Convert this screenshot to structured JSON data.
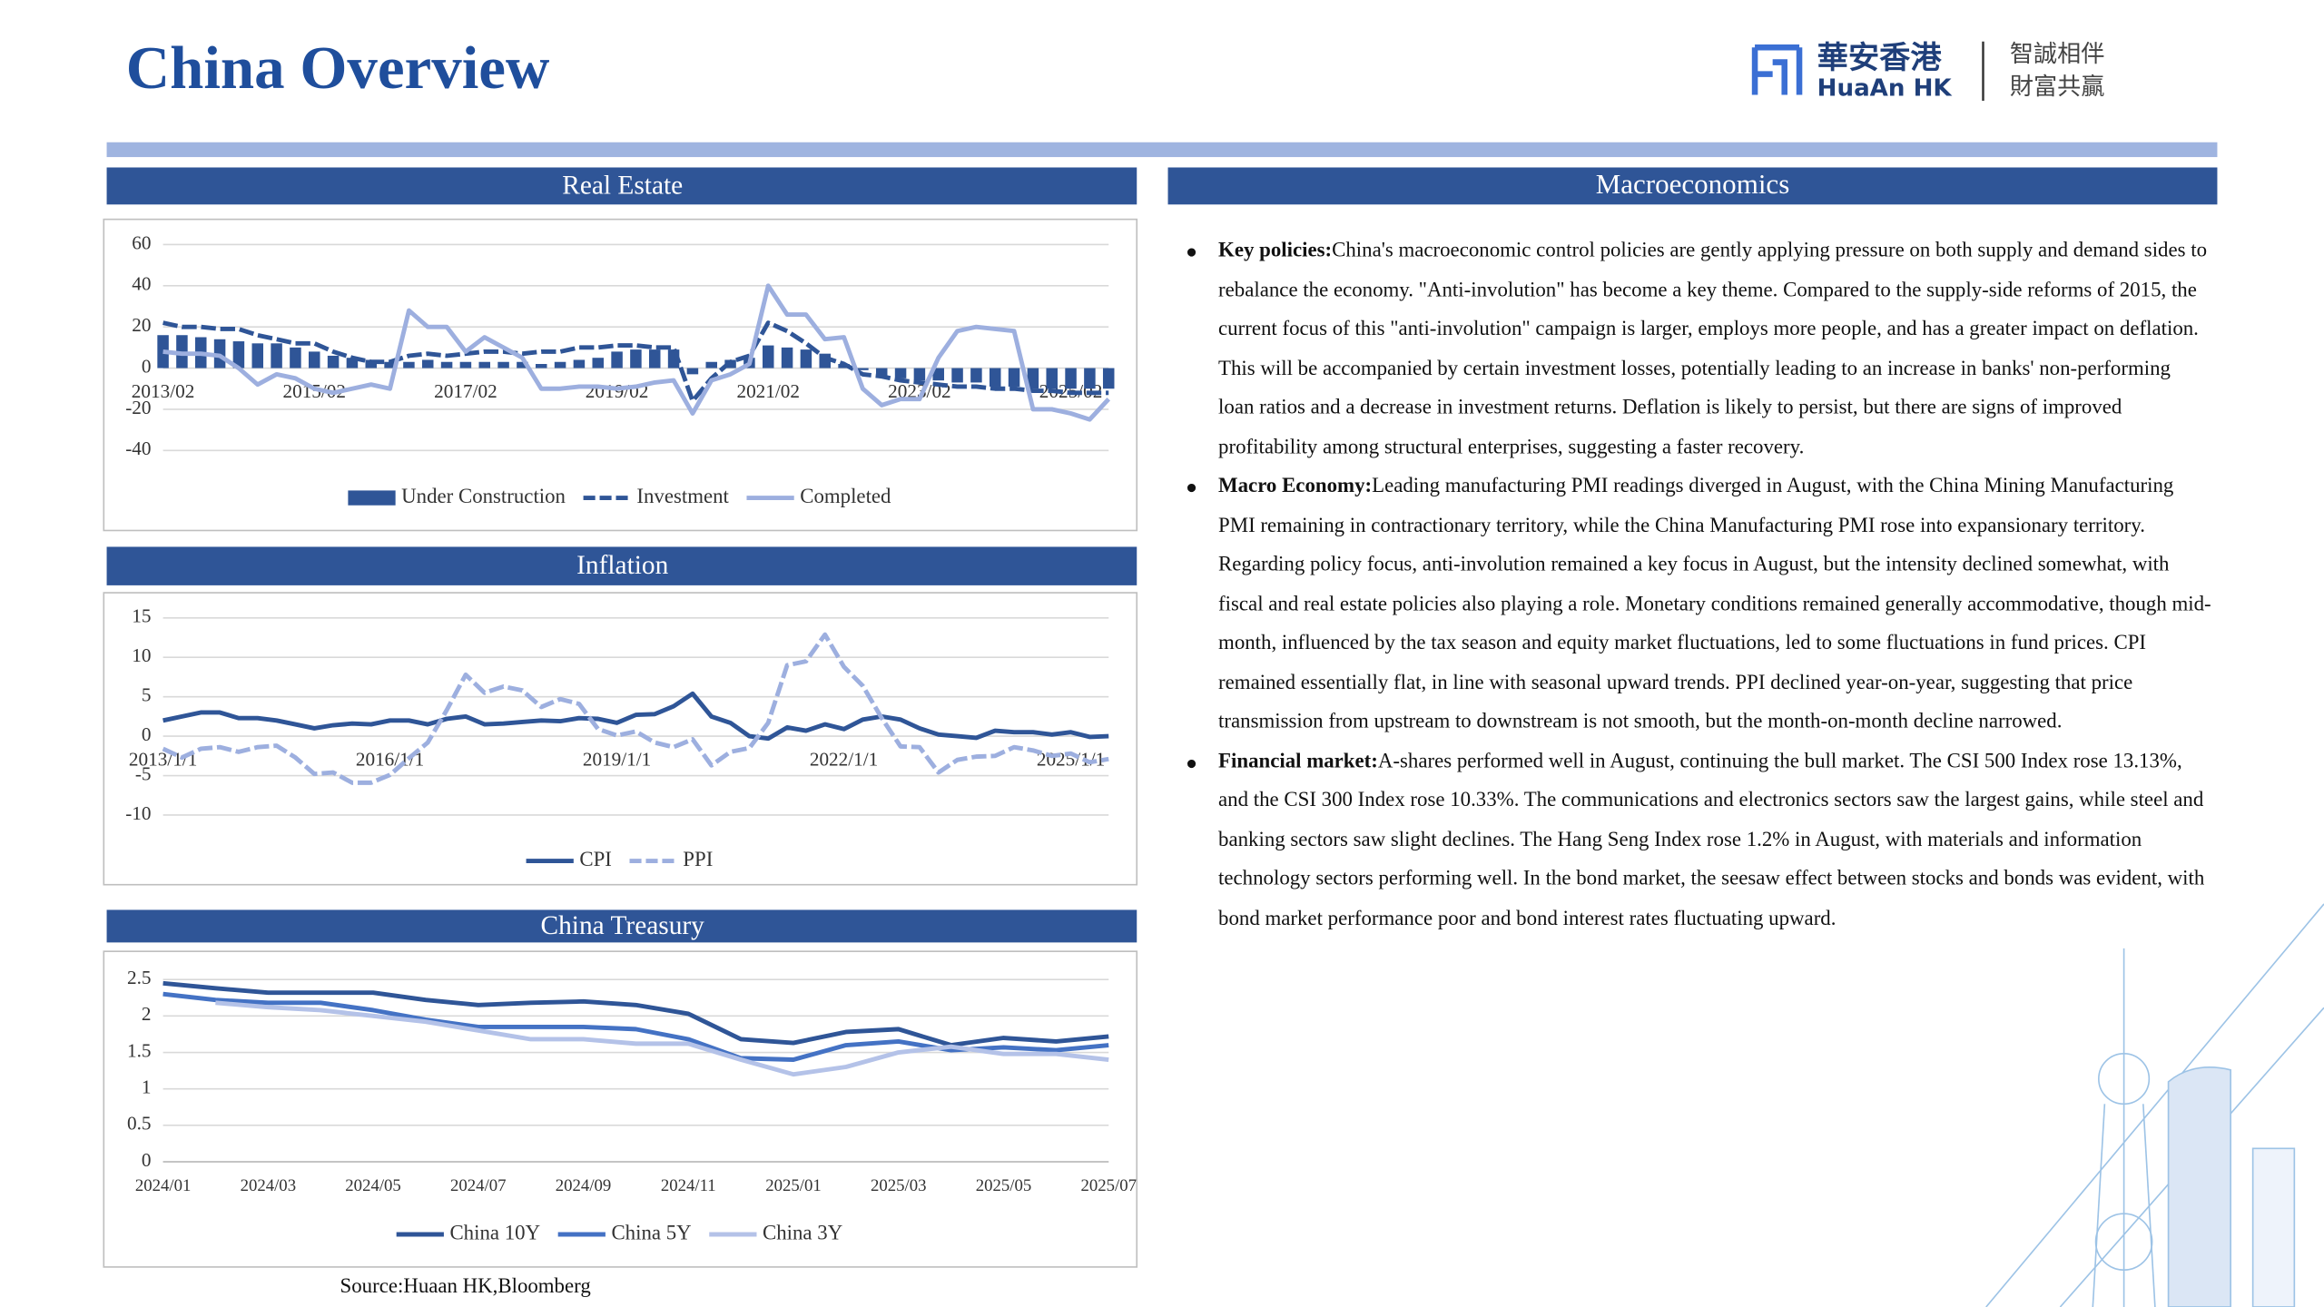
{
  "header": {
    "title": "China Overview",
    "logo_cn": "華安香港",
    "logo_en": "HuaAn HK",
    "slogan_1": "智誠相伴",
    "slogan_2": "財富共贏"
  },
  "chart_data": [
    {
      "type": "bar_line",
      "title": "Real Estate",
      "categories": [
        "2013/02",
        null,
        null,
        null,
        null,
        null,
        null,
        null,
        "2015/02",
        null,
        null,
        null,
        null,
        null,
        null,
        null,
        "2017/02",
        null,
        null,
        null,
        null,
        null,
        null,
        null,
        "2019/02",
        null,
        null,
        null,
        null,
        null,
        null,
        null,
        "2021/02",
        null,
        null,
        null,
        null,
        null,
        null,
        null,
        "2023/02",
        null,
        null,
        null,
        null,
        null,
        null,
        null,
        "2025/02",
        null,
        null
      ],
      "series": [
        {
          "name": "Under Construction",
          "type": "bar",
          "color": "#2f5597",
          "values": [
            16,
            16,
            15,
            14,
            13,
            12,
            12,
            10,
            8,
            6,
            5,
            4,
            3,
            3,
            4,
            3,
            3,
            3,
            3,
            3,
            2,
            3,
            4,
            5,
            8,
            9,
            9,
            9,
            -3,
            3,
            4,
            5,
            11,
            10,
            9,
            7,
            2,
            -1,
            -4,
            -5,
            -6,
            -6,
            -7,
            -7,
            -9,
            -9,
            -10,
            -10,
            -10,
            -10,
            -10
          ]
        },
        {
          "name": "Investment",
          "type": "line",
          "style": "dashed",
          "color": "#2f5597",
          "values": [
            22,
            20,
            20,
            19,
            19,
            16,
            14,
            12,
            12,
            8,
            5,
            3,
            3,
            6,
            7,
            6,
            7,
            8,
            8,
            7,
            8,
            8,
            10,
            10,
            11,
            11,
            10,
            10,
            -16,
            -5,
            3,
            6,
            22,
            18,
            12,
            5,
            2,
            -3,
            -4,
            -6,
            -7,
            -8,
            -9,
            -9,
            -10,
            -10,
            -11,
            -11,
            -12,
            -12,
            -12
          ]
        },
        {
          "name": "Completed",
          "type": "line",
          "color": "#9dafdf",
          "values": [
            8,
            7,
            7,
            6,
            0,
            -8,
            -3,
            -5,
            -10,
            -12,
            -10,
            -8,
            -10,
            28,
            20,
            20,
            8,
            15,
            10,
            5,
            -10,
            -10,
            -9,
            -9,
            -10,
            -9,
            -7,
            -6,
            -22,
            -6,
            -3,
            2,
            40,
            26,
            26,
            14,
            15,
            -10,
            -18,
            -15,
            -15,
            5,
            18,
            20,
            19,
            18,
            -20,
            -20,
            -22,
            -25,
            -15
          ]
        }
      ],
      "ylim": [
        -40,
        60
      ],
      "yticks": [
        60,
        40,
        20,
        0,
        -20,
        -40
      ],
      "grid": true
    },
    {
      "type": "line",
      "title": "Inflation",
      "categories": [
        "2013/1/1",
        null,
        null,
        null,
        null,
        null,
        null,
        null,
        null,
        null,
        null,
        null,
        "2016/1/1",
        null,
        null,
        null,
        null,
        null,
        null,
        null,
        null,
        null,
        null,
        null,
        "2019/1/1",
        null,
        null,
        null,
        null,
        null,
        null,
        null,
        null,
        null,
        null,
        null,
        "2022/1/1",
        null,
        null,
        null,
        null,
        null,
        null,
        null,
        null,
        null,
        null,
        null,
        "2025/1/1",
        null,
        null
      ],
      "series": [
        {
          "name": "CPI",
          "color": "#2f5597",
          "values": [
            2.0,
            2.5,
            3.0,
            3.0,
            2.3,
            2.3,
            2.0,
            1.5,
            1.0,
            1.4,
            1.6,
            1.5,
            2.0,
            2.0,
            1.5,
            2.2,
            2.5,
            1.5,
            1.6,
            1.8,
            2.0,
            1.9,
            2.3,
            2.2,
            1.7,
            2.7,
            2.8,
            3.8,
            5.4,
            2.5,
            1.7,
            0.0,
            -0.3,
            1.1,
            0.7,
            1.5,
            0.9,
            2.1,
            2.5,
            2.1,
            1.0,
            0.2,
            0.0,
            -0.2,
            0.7,
            0.5,
            0.5,
            0.2,
            0.5,
            -0.1,
            0.0
          ]
        },
        {
          "name": "PPI",
          "style": "dashed",
          "color": "#9dafdf",
          "values": [
            -1.6,
            -2.7,
            -1.6,
            -1.4,
            -2.0,
            -1.4,
            -1.2,
            -2.7,
            -4.8,
            -4.6,
            -5.9,
            -5.9,
            -4.9,
            -2.8,
            -0.8,
            3.3,
            7.8,
            5.5,
            6.3,
            5.8,
            3.7,
            4.7,
            4.1,
            0.9,
            0.1,
            0.6,
            -0.8,
            -1.4,
            -0.4,
            -3.7,
            -2.0,
            -1.5,
            1.7,
            9.0,
            9.5,
            12.9,
            8.8,
            6.4,
            2.3,
            -1.3,
            -1.4,
            -4.6,
            -3.0,
            -2.6,
            -2.5,
            -1.4,
            -1.8,
            -2.5,
            -2.2,
            -3.3,
            -2.9
          ]
        }
      ],
      "ylim": [
        -10,
        15
      ],
      "yticks": [
        15,
        10,
        5,
        0,
        -5,
        -10
      ],
      "grid": true
    },
    {
      "type": "line",
      "title": "China Treasury",
      "categories": [
        "2024/01",
        null,
        "2024/03",
        null,
        "2024/05",
        null,
        "2024/07",
        null,
        "2024/09",
        null,
        "2024/11",
        null,
        "2025/01",
        null,
        "2025/03",
        null,
        "2025/05",
        null,
        "2025/07"
      ],
      "series": [
        {
          "name": "China 10Y",
          "color": "#2f5597",
          "values": [
            2.45,
            2.38,
            2.32,
            2.32,
            2.32,
            2.22,
            2.15,
            2.18,
            2.2,
            2.15,
            2.03,
            1.68,
            1.63,
            1.78,
            1.82,
            1.6,
            1.7,
            1.65,
            1.72
          ]
        },
        {
          "name": "China 5Y",
          "color": "#4472c4",
          "values": [
            2.3,
            2.22,
            2.18,
            2.18,
            2.08,
            1.95,
            1.85,
            1.85,
            1.85,
            1.82,
            1.68,
            1.42,
            1.4,
            1.6,
            1.65,
            1.53,
            1.57,
            1.53,
            1.6
          ]
        },
        {
          "name": "China 3Y",
          "color": "#b4c2e8",
          "values": [
            null,
            2.18,
            2.12,
            2.08,
            2.0,
            1.92,
            1.8,
            1.68,
            1.68,
            1.62,
            1.62,
            1.4,
            1.2,
            1.3,
            1.5,
            1.58,
            1.48,
            1.48,
            1.4
          ]
        }
      ],
      "ylim": [
        0,
        2.5
      ],
      "yticks": [
        2.5,
        2,
        1.5,
        1,
        0.5,
        0
      ],
      "grid": true
    }
  ],
  "macro": {
    "title": "Macroeconomics",
    "items": [
      {
        "label": "Key policies:",
        "text": "China's macroeconomic control policies are gently applying pressure on both supply and demand sides to rebalance the economy. \"Anti-involution\" has become a key theme. Compared to the supply-side reforms of 2015, the current focus of this \"anti-involution\" campaign is larger, employs more people, and has a greater impact on deflation. This will be accompanied by certain investment losses, potentially leading to an increase in banks' non-performing loan ratios and a decrease in investment returns. Deflation is likely to persist, but there are signs of improved profitability among structural enterprises, suggesting a faster recovery."
      },
      {
        "label": "Macro Economy:",
        "text": "Leading manufacturing PMI readings diverged in August, with the China Mining Manufacturing PMI remaining in contractionary territory, while the China Manufacturing PMI rose into expansionary territory. Regarding policy focus, anti-involution remained a key focus in August, but the intensity declined somewhat, with fiscal and real estate policies also playing a role. Monetary conditions remained generally accommodative, though mid-month, influenced by the tax season and equity market fluctuations, led to some fluctuations in fund prices. CPI remained essentially flat, in line with seasonal upward trends. PPI declined year-on-year, suggesting that price transmission from upstream to downstream is not smooth, but the month-on-month decline narrowed."
      },
      {
        "label": "Financial market:",
        "text": "A-shares performed well in August, continuing the bull market. The CSI 500 Index rose 13.13%, and the CSI 300 Index rose 10.33%. The communications and electronics sectors saw the largest gains, while steel and banking sectors saw slight declines. The Hang Seng Index rose 1.2% in August, with materials and information technology sectors performing well. In the bond market, the seesaw effect between stocks and bonds was evident, with bond market performance poor and bond interest rates fluctuating upward."
      }
    ]
  },
  "source": "Source:Huaan HK,Bloomberg"
}
